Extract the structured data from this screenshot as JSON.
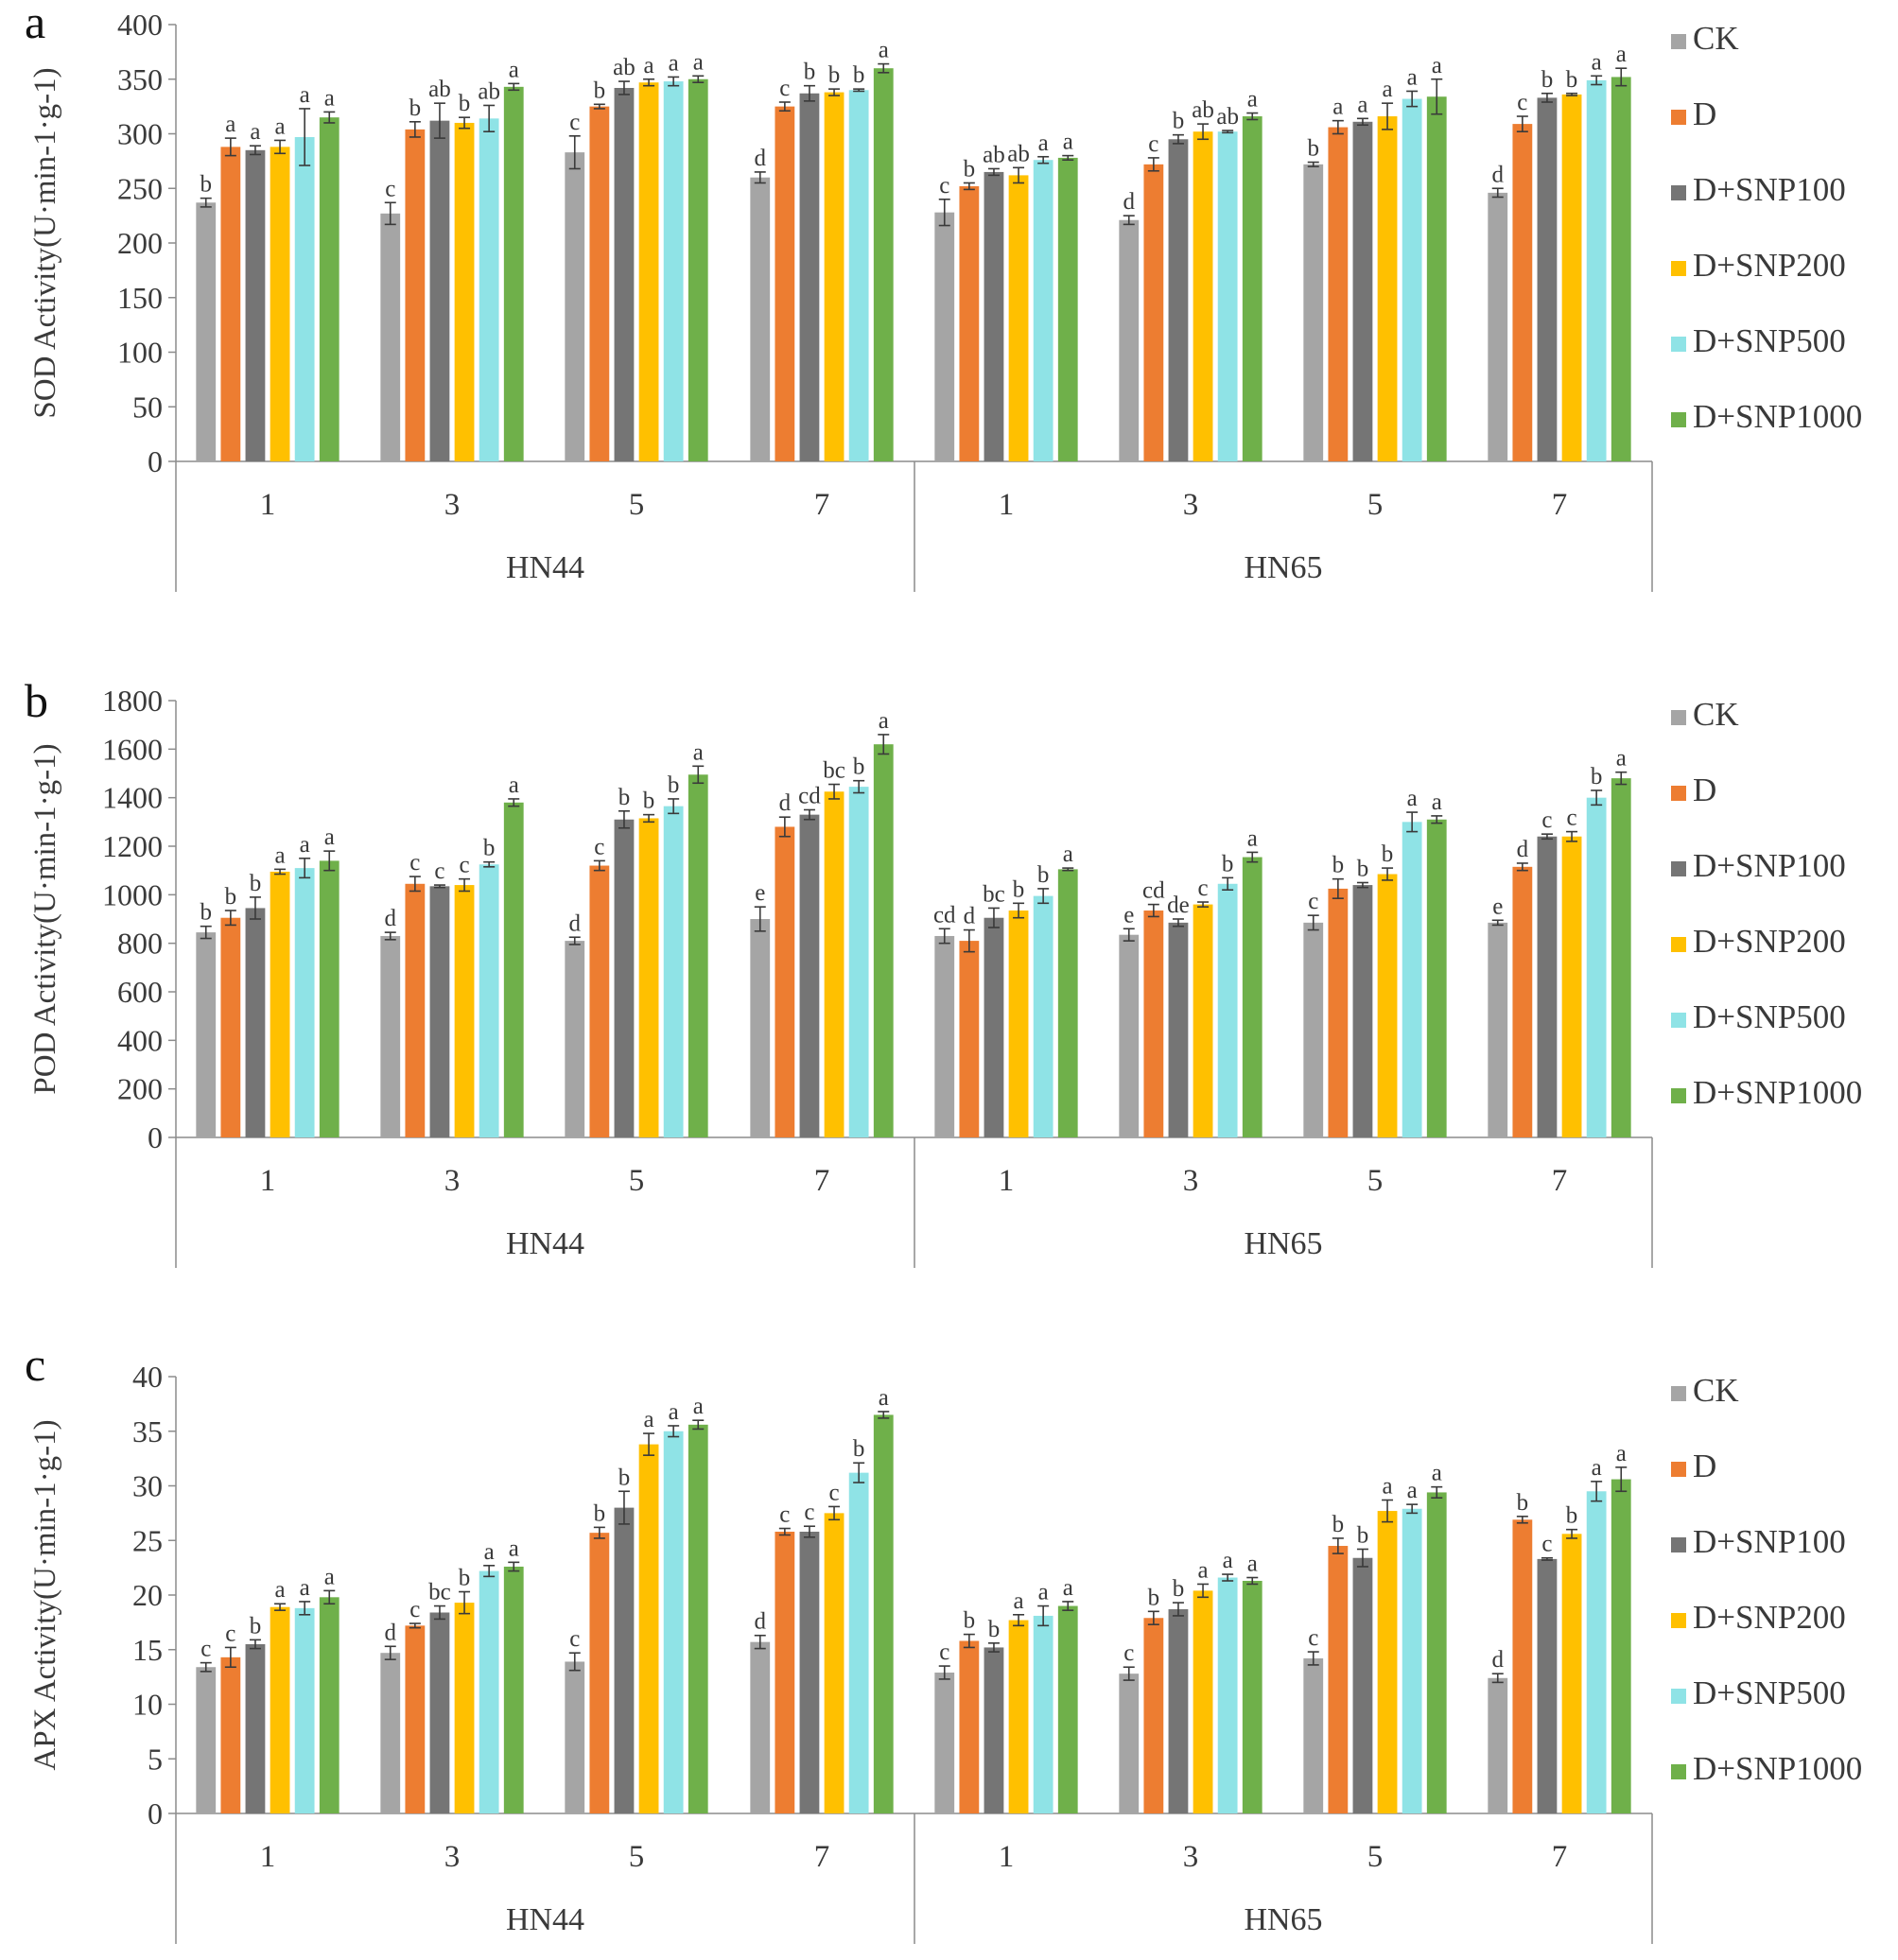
{
  "legend": [
    "CK",
    "D",
    "D+SNP100",
    "D+SNP200",
    "D+SNP500",
    "D+SNP1000"
  ],
  "colors": [
    "#a5a5a5",
    "#ed7d31",
    "#757575",
    "#ffc000",
    "#8fe3e6",
    "#6fb04a"
  ],
  "chart_data": [
    {
      "panel": "a",
      "type": "bar",
      "ylabel": "SOD Activity(U·min-1·g-1)",
      "ylim": [
        0,
        400
      ],
      "yticks": [
        0,
        50,
        100,
        150,
        200,
        250,
        300,
        350,
        400
      ],
      "groups": [
        {
          "name": "HN44",
          "categories": [
            "1",
            "3",
            "5",
            "7"
          ]
        },
        {
          "name": "HN65",
          "categories": [
            "1",
            "3",
            "5",
            "7"
          ]
        }
      ],
      "series": [
        {
          "name": "CK",
          "values": [
            237,
            227,
            283,
            260,
            228,
            221,
            272,
            246
          ],
          "errors": [
            4,
            10,
            15,
            5,
            12,
            4,
            2,
            4
          ],
          "labels": [
            "b",
            "c",
            "c",
            "d",
            "c",
            "d",
            "b",
            "d"
          ]
        },
        {
          "name": "D",
          "values": [
            288,
            304,
            325,
            325,
            252,
            272,
            306,
            309
          ],
          "errors": [
            8,
            7,
            2,
            4,
            3,
            6,
            6,
            7
          ],
          "labels": [
            "a",
            "b",
            "b",
            "c",
            "b",
            "c",
            "a",
            "c"
          ]
        },
        {
          "name": "D+SNP100",
          "values": [
            285,
            312,
            342,
            337,
            265,
            295,
            311,
            333
          ],
          "errors": [
            4,
            16,
            6,
            7,
            3,
            4,
            3,
            4
          ],
          "labels": [
            "a",
            "ab",
            "ab",
            "b",
            "ab",
            "b",
            "a",
            "b"
          ]
        },
        {
          "name": "D+SNP200",
          "values": [
            288,
            310,
            347,
            338,
            262,
            302,
            316,
            336
          ],
          "errors": [
            6,
            5,
            3,
            3,
            7,
            7,
            12,
            1
          ],
          "labels": [
            "a",
            "b",
            "a",
            "b",
            "ab",
            "ab",
            "a",
            "b"
          ]
        },
        {
          "name": "D+SNP500",
          "values": [
            297,
            314,
            348,
            340,
            276,
            302,
            332,
            349
          ],
          "errors": [
            26,
            12,
            4,
            1,
            3,
            1,
            7,
            4
          ],
          "labels": [
            "a",
            "ab",
            "a",
            "b",
            "a",
            "ab",
            "a",
            "a"
          ]
        },
        {
          "name": "D+SNP1000",
          "values": [
            315,
            343,
            350,
            360,
            278,
            316,
            334,
            352
          ],
          "errors": [
            5,
            3,
            3,
            4,
            2,
            3,
            16,
            8
          ],
          "labels": [
            "a",
            "a",
            "a",
            "a",
            "a",
            "a",
            "a",
            "a"
          ]
        }
      ]
    },
    {
      "panel": "b",
      "type": "bar",
      "ylabel": "POD Activity(U·min-1·g-1)",
      "ylim": [
        0,
        1800
      ],
      "yticks": [
        0,
        200,
        400,
        600,
        800,
        1000,
        1200,
        1400,
        1600,
        1800
      ],
      "groups": [
        {
          "name": "HN44",
          "categories": [
            "1",
            "3",
            "5",
            "7"
          ]
        },
        {
          "name": "HN65",
          "categories": [
            "1",
            "3",
            "5",
            "7"
          ]
        }
      ],
      "series": [
        {
          "name": "CK",
          "values": [
            845,
            830,
            810,
            900,
            830,
            835,
            885,
            885
          ],
          "errors": [
            25,
            15,
            15,
            50,
            30,
            25,
            30,
            10
          ],
          "labels": [
            "b",
            "d",
            "d",
            "e",
            "cd",
            "e",
            "c",
            "e"
          ]
        },
        {
          "name": "D",
          "values": [
            905,
            1045,
            1120,
            1280,
            810,
            935,
            1025,
            1115
          ],
          "errors": [
            30,
            30,
            20,
            40,
            45,
            25,
            40,
            15
          ],
          "labels": [
            "b",
            "c",
            "c",
            "d",
            "d",
            "cd",
            "b",
            "d"
          ]
        },
        {
          "name": "D+SNP100",
          "values": [
            945,
            1035,
            1310,
            1330,
            905,
            885,
            1040,
            1240
          ],
          "errors": [
            45,
            5,
            35,
            20,
            40,
            15,
            10,
            10
          ],
          "labels": [
            "b",
            "c",
            "b",
            "cd",
            "bc",
            "de",
            "b",
            "c"
          ]
        },
        {
          "name": "D+SNP200",
          "values": [
            1095,
            1040,
            1315,
            1425,
            935,
            960,
            1085,
            1240
          ],
          "errors": [
            10,
            25,
            15,
            30,
            30,
            10,
            25,
            20
          ],
          "labels": [
            "a",
            "c",
            "b",
            "bc",
            "b",
            "c",
            "b",
            "c"
          ]
        },
        {
          "name": "D+SNP500",
          "values": [
            1110,
            1125,
            1365,
            1445,
            995,
            1045,
            1300,
            1400
          ],
          "errors": [
            40,
            10,
            30,
            25,
            30,
            25,
            40,
            30
          ],
          "labels": [
            "a",
            "b",
            "b",
            "b",
            "b",
            "b",
            "a",
            "b"
          ]
        },
        {
          "name": "D+SNP1000",
          "values": [
            1140,
            1380,
            1495,
            1620,
            1105,
            1155,
            1310,
            1480
          ],
          "errors": [
            40,
            15,
            35,
            40,
            5,
            20,
            15,
            25
          ],
          "labels": [
            "a",
            "a",
            "a",
            "a",
            "a",
            "a",
            "a",
            "a"
          ]
        }
      ]
    },
    {
      "panel": "c",
      "type": "bar",
      "ylabel": "APX Activity(U·min-1·g-1)",
      "ylim": [
        0,
        40
      ],
      "yticks": [
        0,
        5,
        10,
        15,
        20,
        25,
        30,
        35,
        40
      ],
      "groups": [
        {
          "name": "HN44",
          "categories": [
            "1",
            "3",
            "5",
            "7"
          ]
        },
        {
          "name": "HN65",
          "categories": [
            "1",
            "3",
            "5",
            "7"
          ]
        }
      ],
      "series": [
        {
          "name": "CK",
          "values": [
            13.4,
            14.7,
            13.9,
            15.7,
            12.9,
            12.8,
            14.2,
            12.4
          ],
          "errors": [
            0.4,
            0.6,
            0.8,
            0.6,
            0.6,
            0.6,
            0.6,
            0.4
          ],
          "labels": [
            "c",
            "d",
            "c",
            "d",
            "c",
            "c",
            "c",
            "d"
          ]
        },
        {
          "name": "D",
          "values": [
            14.3,
            17.2,
            25.7,
            25.8,
            15.8,
            17.9,
            24.5,
            26.9
          ],
          "errors": [
            0.9,
            0.2,
            0.5,
            0.3,
            0.6,
            0.6,
            0.7,
            0.3
          ],
          "labels": [
            "c",
            "c",
            "b",
            "c",
            "b",
            "b",
            "b",
            "b"
          ]
        },
        {
          "name": "D+SNP100",
          "values": [
            15.5,
            18.4,
            28.0,
            25.8,
            15.2,
            18.7,
            23.4,
            23.3
          ],
          "errors": [
            0.4,
            0.6,
            1.5,
            0.5,
            0.4,
            0.6,
            0.8,
            0.1
          ],
          "labels": [
            "b",
            "bc",
            "b",
            "c",
            "b",
            "b",
            "b",
            "c"
          ]
        },
        {
          "name": "D+SNP200",
          "values": [
            18.9,
            19.3,
            33.8,
            27.5,
            17.7,
            20.4,
            27.7,
            25.6
          ],
          "errors": [
            0.3,
            1.0,
            1.0,
            0.6,
            0.5,
            0.6,
            1.0,
            0.4
          ],
          "labels": [
            "a",
            "b",
            "a",
            "c",
            "a",
            "a",
            "a",
            "b"
          ]
        },
        {
          "name": "D+SNP500",
          "values": [
            18.8,
            22.2,
            35.0,
            31.2,
            18.1,
            21.6,
            27.9,
            29.5
          ],
          "errors": [
            0.6,
            0.5,
            0.5,
            0.9,
            0.9,
            0.3,
            0.4,
            0.9
          ],
          "labels": [
            "a",
            "a",
            "a",
            "b",
            "a",
            "a",
            "a",
            "a"
          ]
        },
        {
          "name": "D+SNP1000",
          "values": [
            19.8,
            22.6,
            35.6,
            36.5,
            19.0,
            21.3,
            29.4,
            30.6
          ],
          "errors": [
            0.6,
            0.4,
            0.4,
            0.3,
            0.4,
            0.3,
            0.5,
            1.1
          ],
          "labels": [
            "a",
            "a",
            "a",
            "a",
            "a",
            "a",
            "a",
            "a"
          ]
        }
      ]
    }
  ]
}
